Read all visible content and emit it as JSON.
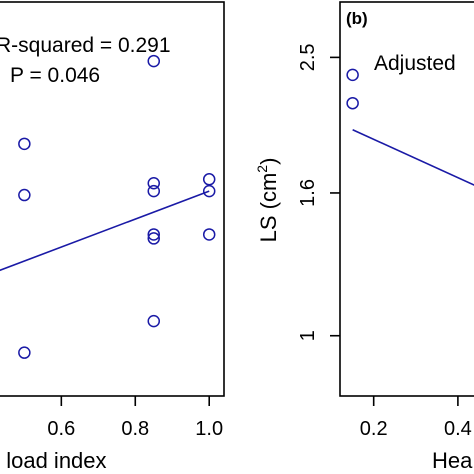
{
  "colors": {
    "points": "#1a1aa6",
    "fit_line": "#1a1aa6",
    "axes": "#000000"
  },
  "chart_data": [
    {
      "panel": "left",
      "type": "scatter",
      "title": "",
      "xlabel": "t load index",
      "ylabel": "",
      "x_ticks": [
        0.6,
        0.8,
        1.0
      ],
      "x_tick_labels": [
        "0.6",
        "0.8",
        "1.0"
      ],
      "xlim": [
        0.38,
        1.04
      ],
      "ylim": [
        0,
        1
      ],
      "annotations": [
        "R-squared = 0.291",
        "P = 0.046"
      ],
      "points": [
        {
          "x": 0.5,
          "y": 0.64
        },
        {
          "x": 0.5,
          "y": 0.51
        },
        {
          "x": 0.5,
          "y": 0.11
        },
        {
          "x": 0.85,
          "y": 0.85
        },
        {
          "x": 0.85,
          "y": 0.54
        },
        {
          "x": 0.85,
          "y": 0.52
        },
        {
          "x": 0.85,
          "y": 0.41
        },
        {
          "x": 0.85,
          "y": 0.4
        },
        {
          "x": 0.85,
          "y": 0.19
        },
        {
          "x": 1.0,
          "y": 0.55
        },
        {
          "x": 1.0,
          "y": 0.52
        },
        {
          "x": 1.0,
          "y": 0.41
        }
      ],
      "fit_line": [
        {
          "x": 0.38,
          "y": 0.3
        },
        {
          "x": 1.0,
          "y": 0.52
        }
      ]
    },
    {
      "panel": "right",
      "type": "scatter",
      "panel_label": "(b)",
      "title": "",
      "xlabel": "Hea",
      "ylabel": "LS (cm",
      "ylabel_superscript": "2",
      "ylabel_suffix": ")",
      "x_ticks": [
        0.2,
        0.4
      ],
      "x_tick_labels": [
        "0.2",
        "0.4"
      ],
      "y_ticks": [
        1.0,
        1.6,
        2.5
      ],
      "y_tick_labels": [
        "1",
        "1.6",
        "2.5"
      ],
      "y_scale": "log",
      "xlim": [
        0.12,
        0.5
      ],
      "ylim": [
        0.82,
        3.0
      ],
      "annotations": [
        "Adjusted"
      ],
      "points": [
        {
          "x": 0.15,
          "y": 2.36
        },
        {
          "x": 0.15,
          "y": 2.15
        }
      ],
      "fit_line": [
        {
          "x": 0.15,
          "y": 1.97
        },
        {
          "x": 0.5,
          "y": 1.58
        }
      ]
    }
  ]
}
